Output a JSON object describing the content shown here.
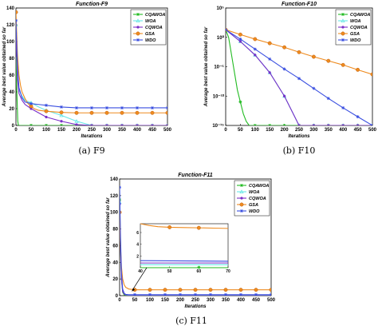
{
  "chart_data": [
    {
      "id": "f9",
      "type": "line",
      "title": "Function-F9",
      "caption": "(a) F9",
      "xlabel": "Iterations",
      "ylabel": "Average best value obtained so far",
      "xlim": [
        0,
        500
      ],
      "ylim": [
        0,
        140
      ],
      "yscale": "linear",
      "xticks": [
        0,
        50,
        100,
        150,
        200,
        250,
        300,
        350,
        400,
        450,
        500
      ],
      "yticks": [
        0,
        20,
        40,
        60,
        80,
        100,
        120,
        140
      ],
      "ytick_labels": [
        "0",
        "20",
        "40",
        "60",
        "80",
        "100",
        "120",
        "140"
      ],
      "legend_position": "top-right",
      "series": [
        {
          "name": "CQAWOA",
          "color": "#22bb22",
          "marker": "star",
          "x": [
            0,
            3,
            6,
            8,
            10,
            50,
            100,
            150,
            200,
            250,
            300,
            350,
            400,
            450,
            500
          ],
          "y": [
            80,
            40,
            5,
            0.5,
            0,
            0,
            0,
            0,
            0,
            0,
            0,
            0,
            0,
            0,
            0
          ]
        },
        {
          "name": "WOA",
          "color": "#66e6e6",
          "marker": "triangle",
          "x": [
            0,
            5,
            10,
            20,
            30,
            50,
            75,
            100,
            150,
            200,
            250,
            300,
            350,
            400,
            450,
            500
          ],
          "y": [
            120,
            60,
            42,
            35,
            30,
            27,
            22,
            18,
            12,
            5,
            0,
            0,
            0,
            0,
            0,
            0
          ]
        },
        {
          "name": "CQWOA",
          "color": "#7a2fc8",
          "marker": "dot",
          "x": [
            0,
            5,
            10,
            20,
            30,
            50,
            75,
            100,
            150,
            200,
            250,
            300,
            350,
            400,
            450,
            500
          ],
          "y": [
            110,
            55,
            38,
            30,
            25,
            20,
            15,
            10,
            5,
            1,
            0,
            0,
            0,
            0,
            0,
            0
          ]
        },
        {
          "name": "GSA",
          "color": "#ee8a1e",
          "marker": "circle",
          "x": [
            0,
            5,
            10,
            15,
            20,
            30,
            40,
            50,
            60,
            75,
            100,
            150,
            200,
            250,
            300,
            350,
            400,
            450,
            500
          ],
          "y": [
            135,
            85,
            60,
            48,
            40,
            32,
            26,
            23,
            20,
            18,
            17,
            15.5,
            15,
            15,
            15,
            15,
            15,
            15,
            15
          ]
        },
        {
          "name": "WDO",
          "color": "#3a4fe0",
          "marker": "star",
          "x": [
            0,
            5,
            10,
            20,
            30,
            50,
            75,
            100,
            150,
            200,
            250,
            300,
            350,
            400,
            450,
            500
          ],
          "y": [
            125,
            70,
            45,
            33,
            28,
            26,
            25,
            24,
            22,
            21,
            21,
            21,
            21,
            21,
            21,
            21
          ]
        }
      ]
    },
    {
      "id": "f10",
      "type": "line",
      "title": "Function-F10",
      "caption": "(b) F10",
      "xlabel": "Iterations",
      "ylabel": "Average best value obtained so far",
      "xlim": [
        0,
        500
      ],
      "ylim": [
        1e-15,
        100000.0
      ],
      "yscale": "log",
      "xticks": [
        0,
        50,
        100,
        150,
        200,
        250,
        300,
        350,
        400,
        450,
        500
      ],
      "yticks": [
        1e-15,
        1e-10,
        1e-05,
        1,
        100000.0
      ],
      "ytick_labels": [
        "10⁻¹⁵",
        "10⁻¹⁰",
        "10⁻⁵",
        "10⁰",
        "10⁵"
      ],
      "legend_position": "top-right",
      "series": [
        {
          "name": "CQAWOA",
          "color": "#22bb22",
          "marker": "star",
          "x": [
            0,
            10,
            20,
            30,
            40,
            50,
            60,
            70,
            80,
            100,
            150,
            200,
            250,
            300,
            350,
            400,
            450,
            500
          ],
          "y": [
            20,
            1,
            0.001,
            1e-06,
            1e-09,
            1e-11,
            1e-13,
            5e-15,
            1e-15,
            1e-15,
            1e-15,
            1e-15,
            1e-15,
            1e-15,
            1e-15,
            1e-15,
            1e-15,
            1e-15
          ]
        },
        {
          "name": "WOA",
          "color": "#66e6e6",
          "marker": "triangle",
          "x": [
            0,
            50,
            100,
            150,
            200,
            230,
            250,
            260,
            300,
            350,
            400,
            450,
            500
          ],
          "y": [
            20,
            0.2,
            0.001,
            1e-06,
            1e-10,
            1e-13,
            1e-15,
            1e-15,
            1e-15,
            1e-15,
            1e-15,
            1e-15,
            1e-15
          ]
        },
        {
          "name": "CQWOA",
          "color": "#7a2fc8",
          "marker": "dot",
          "x": [
            0,
            50,
            100,
            150,
            200,
            230,
            250,
            260,
            300,
            350,
            400,
            450,
            500
          ],
          "y": [
            20,
            0.2,
            0.001,
            1e-06,
            1e-10,
            1e-13,
            1e-15,
            1e-15,
            1e-15,
            1e-15,
            1e-15,
            1e-15,
            1e-15
          ]
        },
        {
          "name": "GSA",
          "color": "#ee8a1e",
          "marker": "circle",
          "x": [
            0,
            50,
            100,
            150,
            200,
            250,
            300,
            350,
            400,
            450,
            500
          ],
          "y": [
            20,
            3,
            0.5,
            0.1,
            0.02,
            0.003,
            0.0005,
            0.0001,
            2e-05,
            3e-06,
            5e-07
          ]
        },
        {
          "name": "WDO",
          "color": "#3a4fe0",
          "marker": "star",
          "x": [
            0,
            50,
            100,
            150,
            200,
            250,
            300,
            350,
            400,
            450,
            500
          ],
          "y": [
            20,
            0.5,
            0.01,
            0.0002,
            4e-06,
            1e-07,
            2e-09,
            4e-11,
            1e-12,
            3e-14,
            1e-15
          ]
        }
      ]
    },
    {
      "id": "f11",
      "type": "line",
      "title": "Function-F11",
      "caption": "(c) F11",
      "xlabel": "Iterations",
      "ylabel": "Average best value obtained so far",
      "xlim": [
        0,
        500
      ],
      "ylim": [
        0,
        140
      ],
      "yscale": "linear",
      "xticks": [
        0,
        50,
        100,
        150,
        200,
        250,
        300,
        350,
        400,
        450,
        500
      ],
      "yticks": [
        0,
        20,
        40,
        60,
        80,
        100,
        120,
        140
      ],
      "ytick_labels": [
        "0",
        "20",
        "40",
        "60",
        "80",
        "100",
        "120",
        "140"
      ],
      "legend_position": "top-right",
      "series": [
        {
          "name": "CQAWOA",
          "color": "#22bb22",
          "marker": "star",
          "x": [
            0,
            3,
            6,
            10,
            15,
            20,
            25,
            30,
            50,
            100,
            150,
            200,
            250,
            300,
            350,
            400,
            450,
            500
          ],
          "y": [
            115,
            60,
            20,
            4,
            1,
            0.3,
            0.1,
            0,
            0,
            0,
            0,
            0,
            0,
            0,
            0,
            0,
            0,
            0
          ]
        },
        {
          "name": "WOA",
          "color": "#66e6e6",
          "marker": "triangle",
          "x": [
            0,
            3,
            6,
            10,
            15,
            20,
            30,
            50,
            100,
            150,
            200,
            250,
            300,
            350,
            400,
            450,
            500
          ],
          "y": [
            112,
            58,
            22,
            6,
            2,
            1,
            0.5,
            0.5,
            0.5,
            0.5,
            0.5,
            0.5,
            0.5,
            0.5,
            0.5,
            0.5,
            0.5
          ]
        },
        {
          "name": "CQWOA",
          "color": "#7a2fc8",
          "marker": "dot",
          "x": [
            0,
            3,
            6,
            10,
            15,
            20,
            30,
            50,
            100,
            150,
            200,
            250,
            300,
            350,
            400,
            450,
            500
          ],
          "y": [
            110,
            55,
            20,
            5,
            2,
            1,
            0.8,
            0.8,
            0.8,
            0.8,
            0.8,
            0.8,
            0.8,
            0.8,
            0.8,
            0.8,
            0.8
          ]
        },
        {
          "name": "GSA",
          "color": "#ee8a1e",
          "marker": "circle",
          "x": [
            0,
            3,
            6,
            10,
            15,
            20,
            25,
            30,
            40,
            50,
            100,
            150,
            200,
            250,
            300,
            350,
            400,
            450,
            500
          ],
          "y": [
            100,
            60,
            35,
            20,
            13,
            10,
            9,
            8,
            7.5,
            7,
            7,
            7,
            7,
            7,
            7,
            7,
            7,
            7,
            7
          ]
        },
        {
          "name": "WDO",
          "color": "#3a4fe0",
          "marker": "star",
          "x": [
            0,
            3,
            6,
            10,
            15,
            20,
            30,
            50,
            100,
            150,
            200,
            250,
            300,
            350,
            400,
            450,
            500
          ],
          "y": [
            130,
            70,
            28,
            8,
            3,
            1.5,
            1.1,
            1.1,
            1.1,
            1.1,
            1.1,
            1.1,
            1.1,
            1.1,
            1.1,
            1.1,
            1.1
          ]
        }
      ],
      "inset": {
        "xlim": [
          40,
          70
        ],
        "ylim": [
          0,
          7.5
        ],
        "xticks": [
          40,
          50,
          60,
          70
        ],
        "yticks": [
          2,
          4,
          6
        ],
        "series": [
          {
            "name": "CQAWOA",
            "color": "#22bb22",
            "x": [
              40,
              70
            ],
            "y": [
              0,
              0
            ]
          },
          {
            "name": "WOA",
            "color": "#66e6e6",
            "x": [
              40,
              70
            ],
            "y": [
              0.5,
              0.5
            ]
          },
          {
            "name": "CQWOA",
            "color": "#7a2fc8",
            "x": [
              40,
              70
            ],
            "y": [
              0.8,
              0.8
            ]
          },
          {
            "name": "GSA",
            "color": "#ee8a1e",
            "x": [
              40,
              43,
              46,
              50,
              55,
              60,
              65,
              70
            ],
            "y": [
              7.5,
              7.2,
              7.0,
              6.9,
              6.85,
              6.8,
              6.75,
              6.7
            ]
          },
          {
            "name": "WDO",
            "color": "#3a4fe0",
            "x": [
              40,
              70
            ],
            "y": [
              1.2,
              1.1
            ]
          }
        ]
      }
    }
  ]
}
